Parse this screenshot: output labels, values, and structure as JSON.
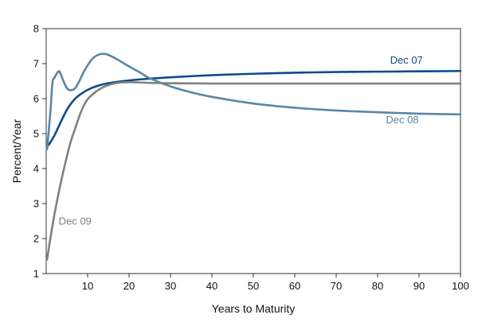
{
  "chart_data": {
    "type": "line",
    "title": "",
    "xlabel": "Years to Maturity",
    "ylabel": "Percent/Year",
    "xlim": [
      0,
      100
    ],
    "ylim": [
      1,
      8
    ],
    "x_ticks": [
      10,
      20,
      30,
      40,
      50,
      60,
      70,
      80,
      90,
      100
    ],
    "y_ticks": [
      1,
      2,
      3,
      4,
      5,
      6,
      7,
      8
    ],
    "grid": false,
    "legend": "inline labels",
    "series": [
      {
        "name": "Dec 07",
        "color": "#0b4a8c",
        "label_at": [
          83,
          7.0
        ],
        "points": [
          [
            0.2,
            4.62
          ],
          [
            1,
            4.75
          ],
          [
            2,
            4.95
          ],
          [
            3,
            5.2
          ],
          [
            4,
            5.45
          ],
          [
            5,
            5.68
          ],
          [
            6,
            5.86
          ],
          [
            7,
            6.0
          ],
          [
            8,
            6.1
          ],
          [
            10,
            6.25
          ],
          [
            12,
            6.35
          ],
          [
            15,
            6.44
          ],
          [
            20,
            6.52
          ],
          [
            25,
            6.57
          ],
          [
            30,
            6.61
          ],
          [
            40,
            6.67
          ],
          [
            50,
            6.71
          ],
          [
            60,
            6.74
          ],
          [
            70,
            6.76
          ],
          [
            80,
            6.77
          ],
          [
            90,
            6.78
          ],
          [
            100,
            6.79
          ]
        ]
      },
      {
        "name": "Dec 08",
        "color": "#5b86a4",
        "label_at": [
          82,
          5.3
        ],
        "points": [
          [
            0.2,
            4.55
          ],
          [
            1,
            5.6
          ],
          [
            1.5,
            6.45
          ],
          [
            2,
            6.6
          ],
          [
            3,
            6.78
          ],
          [
            3.5,
            6.7
          ],
          [
            4,
            6.55
          ],
          [
            5,
            6.3
          ],
          [
            6,
            6.24
          ],
          [
            7,
            6.3
          ],
          [
            8,
            6.5
          ],
          [
            9,
            6.75
          ],
          [
            10,
            6.95
          ],
          [
            11,
            7.12
          ],
          [
            12,
            7.22
          ],
          [
            13,
            7.27
          ],
          [
            14,
            7.28
          ],
          [
            15,
            7.25
          ],
          [
            17,
            7.13
          ],
          [
            20,
            6.92
          ],
          [
            23,
            6.72
          ],
          [
            25,
            6.58
          ],
          [
            30,
            6.35
          ],
          [
            35,
            6.18
          ],
          [
            40,
            6.05
          ],
          [
            50,
            5.86
          ],
          [
            60,
            5.74
          ],
          [
            70,
            5.66
          ],
          [
            80,
            5.61
          ],
          [
            90,
            5.57
          ],
          [
            100,
            5.55
          ]
        ]
      },
      {
        "name": "Dec 09",
        "color": "#808080",
        "label_at": [
          3,
          2.4
        ],
        "points": [
          [
            0.2,
            1.4
          ],
          [
            1,
            2.0
          ],
          [
            2,
            2.7
          ],
          [
            3,
            3.3
          ],
          [
            4,
            3.85
          ],
          [
            5,
            4.35
          ],
          [
            6,
            4.8
          ],
          [
            7,
            5.15
          ],
          [
            8,
            5.5
          ],
          [
            9,
            5.78
          ],
          [
            10,
            5.98
          ],
          [
            12,
            6.2
          ],
          [
            14,
            6.34
          ],
          [
            16,
            6.42
          ],
          [
            18,
            6.46
          ],
          [
            20,
            6.47
          ],
          [
            25,
            6.45
          ],
          [
            30,
            6.44
          ],
          [
            40,
            6.43
          ],
          [
            60,
            6.43
          ],
          [
            80,
            6.43
          ],
          [
            100,
            6.43
          ]
        ]
      }
    ]
  }
}
